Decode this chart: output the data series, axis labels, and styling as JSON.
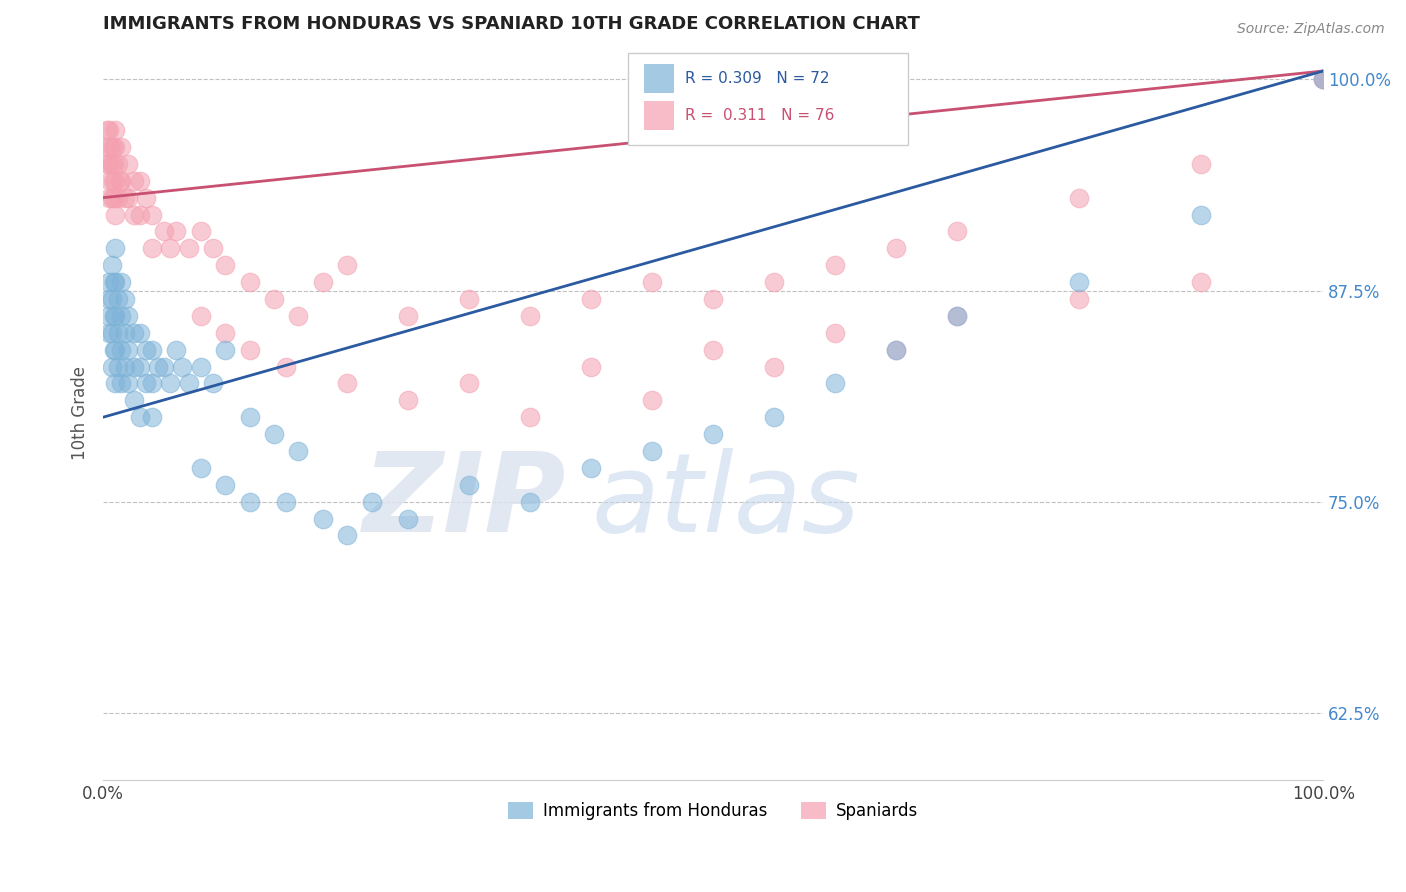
{
  "title": "IMMIGRANTS FROM HONDURAS VS SPANIARD 10TH GRADE CORRELATION CHART",
  "source_text": "Source: ZipAtlas.com",
  "ylabel": "10th Grade",
  "xlim": [
    0.0,
    1.0
  ],
  "ylim": [
    0.585,
    1.02
  ],
  "xtick_labels": [
    "0.0%",
    "100.0%"
  ],
  "xtick_positions": [
    0.0,
    1.0
  ],
  "ytick_labels": [
    "62.5%",
    "75.0%",
    "87.5%",
    "100.0%"
  ],
  "ytick_positions": [
    0.625,
    0.75,
    0.875,
    1.0
  ],
  "blue_R": 0.309,
  "blue_N": 72,
  "pink_R": 0.311,
  "pink_N": 76,
  "blue_color": "#7EB3D8",
  "pink_color": "#F4A0B0",
  "blue_line_color": "#2B5AA0",
  "pink_line_color": "#C85070",
  "legend_label_blue": "Immigrants from Honduras",
  "legend_label_pink": "Spaniards",
  "background_color": "#ffffff",
  "blue_line_y_start": 0.8,
  "blue_line_y_end": 1.005,
  "pink_line_y_start": 0.93,
  "pink_line_y_end": 1.005,
  "blue_scatter_x": [
    0.005,
    0.005,
    0.005,
    0.005,
    0.007,
    0.007,
    0.007,
    0.007,
    0.009,
    0.009,
    0.009,
    0.01,
    0.01,
    0.01,
    0.01,
    0.01,
    0.012,
    0.012,
    0.012,
    0.015,
    0.015,
    0.015,
    0.015,
    0.018,
    0.018,
    0.018,
    0.02,
    0.02,
    0.02,
    0.025,
    0.025,
    0.025,
    0.03,
    0.03,
    0.03,
    0.035,
    0.035,
    0.04,
    0.04,
    0.04,
    0.045,
    0.05,
    0.055,
    0.06,
    0.065,
    0.07,
    0.08,
    0.09,
    0.1,
    0.12,
    0.14,
    0.16,
    0.08,
    0.1,
    0.12,
    0.15,
    0.18,
    0.2,
    0.22,
    0.25,
    0.3,
    0.35,
    0.4,
    0.45,
    0.5,
    0.55,
    0.6,
    0.65,
    0.7,
    0.8,
    0.9,
    1.0
  ],
  "blue_scatter_y": [
    0.88,
    0.87,
    0.86,
    0.85,
    0.89,
    0.87,
    0.85,
    0.83,
    0.88,
    0.86,
    0.84,
    0.9,
    0.88,
    0.86,
    0.84,
    0.82,
    0.87,
    0.85,
    0.83,
    0.88,
    0.86,
    0.84,
    0.82,
    0.87,
    0.85,
    0.83,
    0.86,
    0.84,
    0.82,
    0.85,
    0.83,
    0.81,
    0.85,
    0.83,
    0.8,
    0.84,
    0.82,
    0.84,
    0.82,
    0.8,
    0.83,
    0.83,
    0.82,
    0.84,
    0.83,
    0.82,
    0.83,
    0.82,
    0.84,
    0.8,
    0.79,
    0.78,
    0.77,
    0.76,
    0.75,
    0.75,
    0.74,
    0.73,
    0.75,
    0.74,
    0.76,
    0.75,
    0.77,
    0.78,
    0.79,
    0.8,
    0.82,
    0.84,
    0.86,
    0.88,
    0.92,
    1.0
  ],
  "pink_scatter_x": [
    0.003,
    0.003,
    0.004,
    0.005,
    0.005,
    0.005,
    0.006,
    0.006,
    0.007,
    0.007,
    0.008,
    0.008,
    0.009,
    0.009,
    0.01,
    0.01,
    0.01,
    0.01,
    0.012,
    0.012,
    0.014,
    0.015,
    0.015,
    0.018,
    0.02,
    0.02,
    0.025,
    0.025,
    0.03,
    0.03,
    0.035,
    0.04,
    0.04,
    0.05,
    0.055,
    0.06,
    0.07,
    0.08,
    0.09,
    0.1,
    0.12,
    0.14,
    0.16,
    0.18,
    0.2,
    0.25,
    0.3,
    0.35,
    0.4,
    0.45,
    0.5,
    0.55,
    0.6,
    0.65,
    0.7,
    0.8,
    0.9,
    1.0,
    0.08,
    0.1,
    0.12,
    0.15,
    0.2,
    0.25,
    0.3,
    0.4,
    0.5,
    0.6,
    0.7,
    0.8,
    0.9,
    1.0,
    0.35,
    0.45,
    0.55,
    0.65
  ],
  "pink_scatter_y": [
    0.97,
    0.95,
    0.96,
    0.97,
    0.95,
    0.93,
    0.96,
    0.94,
    0.95,
    0.93,
    0.96,
    0.94,
    0.95,
    0.93,
    0.97,
    0.96,
    0.94,
    0.92,
    0.95,
    0.93,
    0.94,
    0.96,
    0.94,
    0.93,
    0.95,
    0.93,
    0.94,
    0.92,
    0.94,
    0.92,
    0.93,
    0.92,
    0.9,
    0.91,
    0.9,
    0.91,
    0.9,
    0.91,
    0.9,
    0.89,
    0.88,
    0.87,
    0.86,
    0.88,
    0.89,
    0.86,
    0.87,
    0.86,
    0.87,
    0.88,
    0.87,
    0.88,
    0.89,
    0.9,
    0.91,
    0.93,
    0.95,
    1.0,
    0.86,
    0.85,
    0.84,
    0.83,
    0.82,
    0.81,
    0.82,
    0.83,
    0.84,
    0.85,
    0.86,
    0.87,
    0.88,
    1.0,
    0.8,
    0.81,
    0.83,
    0.84
  ]
}
